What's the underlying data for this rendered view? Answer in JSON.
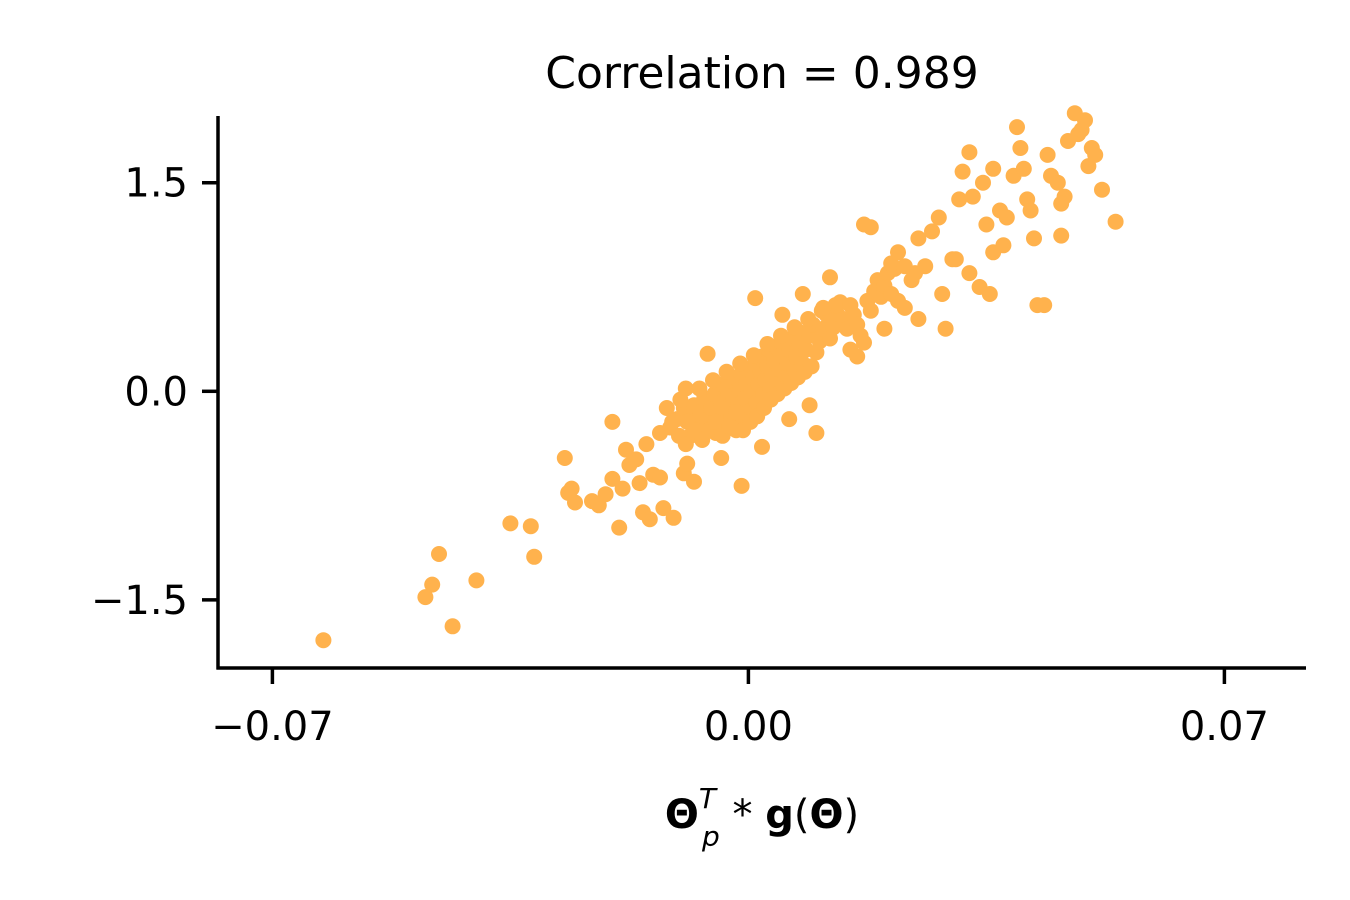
{
  "chart_data": {
    "type": "scatter",
    "title": "Correlation = 0.989",
    "xlabel": {
      "theta_glyph": "Θ",
      "sup": "T",
      "sub": "p",
      "operator": " * ",
      "func": "g",
      "open": "(",
      "close": ")"
    },
    "ylabel": "",
    "xlim": [
      -0.078,
      0.082
    ],
    "ylim": [
      -1.99,
      1.98
    ],
    "xticks": [
      -0.07,
      0.0,
      0.07
    ],
    "xtick_labels": [
      "−0.07",
      "0.00",
      "0.07"
    ],
    "yticks": [
      1.5,
      0.0,
      -1.5
    ],
    "ytick_labels": [
      "1.5",
      "0.0",
      "−1.5"
    ],
    "grid": false,
    "color": "#ffb24d",
    "points": [
      [
        -0.0625,
        -1.79
      ],
      [
        -0.0475,
        -1.48
      ],
      [
        -0.0435,
        -1.69
      ],
      [
        -0.0455,
        -1.17
      ],
      [
        -0.04,
        -1.36
      ],
      [
        -0.0465,
        -1.39
      ],
      [
        -0.035,
        -0.95
      ],
      [
        -0.032,
        -0.97
      ],
      [
        -0.0315,
        -1.19
      ],
      [
        -0.027,
        -0.48
      ],
      [
        -0.0265,
        -0.73
      ],
      [
        -0.026,
        -0.7
      ],
      [
        -0.0255,
        -0.8
      ],
      [
        -0.023,
        -0.79
      ],
      [
        -0.022,
        -0.82
      ],
      [
        -0.021,
        -0.74
      ],
      [
        -0.02,
        -0.63
      ],
      [
        -0.019,
        -0.98
      ],
      [
        -0.0185,
        -0.7
      ],
      [
        -0.0175,
        -0.53
      ],
      [
        -0.0165,
        -0.49
      ],
      [
        -0.016,
        -0.66
      ],
      [
        -0.0155,
        -0.87
      ],
      [
        -0.014,
        -0.6
      ],
      [
        -0.0145,
        -0.92
      ],
      [
        -0.013,
        -0.62
      ],
      [
        -0.0125,
        -0.84
      ],
      [
        -0.011,
        -0.91
      ],
      [
        -0.0095,
        -0.59
      ],
      [
        -0.009,
        -0.52
      ],
      [
        -0.008,
        -0.65
      ],
      [
        -0.006,
        0.27
      ],
      [
        -0.004,
        -0.48
      ],
      [
        -0.001,
        -0.68
      ],
      [
        0.002,
        -0.4
      ],
      [
        0.001,
        0.67
      ],
      [
        -0.02,
        -0.22
      ],
      [
        -0.018,
        -0.42
      ],
      [
        -0.015,
        -0.38
      ],
      [
        -0.013,
        -0.3
      ],
      [
        -0.0115,
        -0.26
      ],
      [
        -0.0105,
        -0.2
      ],
      [
        -0.0095,
        -0.12
      ],
      [
        -0.0085,
        -0.18
      ],
      [
        -0.008,
        -0.1
      ],
      [
        -0.0075,
        -0.25
      ],
      [
        -0.007,
        -0.15
      ],
      [
        -0.0065,
        -0.05
      ],
      [
        -0.006,
        -0.2
      ],
      [
        -0.0055,
        -0.12
      ],
      [
        -0.005,
        -0.02
      ],
      [
        -0.0048,
        -0.3
      ],
      [
        -0.0045,
        -0.15
      ],
      [
        -0.004,
        -0.08
      ],
      [
        -0.0038,
        0.05
      ],
      [
        -0.0035,
        -0.22
      ],
      [
        -0.0032,
        -0.12
      ],
      [
        -0.003,
        -0.02
      ],
      [
        -0.0028,
        0.08
      ],
      [
        -0.0025,
        -0.18
      ],
      [
        -0.0022,
        -0.06
      ],
      [
        -0.002,
        0.1
      ],
      [
        -0.0018,
        -0.28
      ],
      [
        -0.0015,
        -0.1
      ],
      [
        -0.0012,
        0.02
      ],
      [
        -0.001,
        0.12
      ],
      [
        -0.0008,
        -0.2
      ],
      [
        -0.0005,
        -0.05
      ],
      [
        -0.0003,
        0.06
      ],
      [
        0.0,
        0.15
      ],
      [
        0.0002,
        -0.14
      ],
      [
        0.0005,
        0.0
      ],
      [
        0.0008,
        0.1
      ],
      [
        0.001,
        0.2
      ],
      [
        0.0012,
        -0.08
      ],
      [
        0.0015,
        0.05
      ],
      [
        0.0018,
        0.14
      ],
      [
        0.002,
        0.25
      ],
      [
        0.0022,
        -0.02
      ],
      [
        0.0025,
        0.08
      ],
      [
        0.0028,
        0.18
      ],
      [
        0.003,
        0.3
      ],
      [
        0.0032,
        0.02
      ],
      [
        0.0035,
        0.12
      ],
      [
        0.0038,
        0.22
      ],
      [
        0.004,
        0.32
      ],
      [
        0.0042,
        0.05
      ],
      [
        0.0045,
        0.16
      ],
      [
        0.0048,
        0.26
      ],
      [
        0.005,
        0.36
      ],
      [
        0.0055,
        0.1
      ],
      [
        0.0058,
        0.2
      ],
      [
        0.006,
        0.3
      ],
      [
        0.0065,
        0.38
      ],
      [
        0.0068,
        0.15
      ],
      [
        0.007,
        0.25
      ],
      [
        0.0075,
        0.34
      ],
      [
        0.0078,
        0.42
      ],
      [
        0.008,
        0.2
      ],
      [
        0.0085,
        0.3
      ],
      [
        0.009,
        0.4
      ],
      [
        0.0095,
        0.48
      ],
      [
        0.01,
        0.28
      ],
      [
        0.0105,
        0.36
      ],
      [
        0.011,
        0.45
      ],
      [
        0.0115,
        0.55
      ],
      [
        0.012,
        0.38
      ],
      [
        0.0125,
        0.46
      ],
      [
        0.013,
        0.56
      ],
      [
        0.0135,
        0.64
      ],
      [
        -0.009,
        -0.22
      ],
      [
        -0.0085,
        -0.32
      ],
      [
        -0.0078,
        -0.28
      ],
      [
        -0.0068,
        -0.35
      ],
      [
        -0.0058,
        -0.28
      ],
      [
        -0.0048,
        -0.22
      ],
      [
        -0.0038,
        -0.32
      ],
      [
        -0.0028,
        -0.25
      ],
      [
        -0.0018,
        -0.15
      ],
      [
        -0.0008,
        -0.28
      ],
      [
        0.0003,
        -0.22
      ],
      [
        0.0013,
        -0.18
      ],
      [
        0.0023,
        -0.12
      ],
      [
        0.0033,
        -0.06
      ],
      [
        0.0043,
        -0.02
      ],
      [
        0.0053,
        0.02
      ],
      [
        0.0063,
        0.06
      ],
      [
        0.0073,
        0.1
      ],
      [
        0.0083,
        0.14
      ],
      [
        0.0093,
        0.18
      ],
      [
        -0.01,
        -0.06
      ],
      [
        -0.0092,
        0.02
      ],
      [
        -0.0072,
        0.02
      ],
      [
        -0.0052,
        0.08
      ],
      [
        -0.0032,
        0.14
      ],
      [
        -0.0012,
        0.2
      ],
      [
        0.0008,
        0.26
      ],
      [
        0.0028,
        0.34
      ],
      [
        0.0048,
        0.4
      ],
      [
        0.0068,
        0.46
      ],
      [
        0.0088,
        0.52
      ],
      [
        0.0108,
        0.58
      ],
      [
        0.0128,
        0.62
      ],
      [
        -0.012,
        -0.12
      ],
      [
        -0.0112,
        -0.22
      ],
      [
        -0.0102,
        -0.32
      ],
      [
        -0.0092,
        -0.38
      ],
      [
        0.014,
        0.52
      ],
      [
        0.0145,
        0.45
      ],
      [
        0.015,
        0.62
      ],
      [
        0.0155,
        0.55
      ],
      [
        0.016,
        0.48
      ],
      [
        0.0165,
        0.4
      ],
      [
        0.017,
        0.35
      ],
      [
        0.0175,
        0.65
      ],
      [
        0.018,
        0.58
      ],
      [
        0.0185,
        0.72
      ],
      [
        0.019,
        0.8
      ],
      [
        0.0195,
        0.68
      ],
      [
        0.02,
        0.76
      ],
      [
        0.0205,
        0.85
      ],
      [
        0.021,
        0.7
      ],
      [
        0.0215,
        0.88
      ],
      [
        0.022,
        0.65
      ],
      [
        0.023,
        0.6
      ],
      [
        0.024,
        0.8
      ],
      [
        0.025,
        0.52
      ],
      [
        0.026,
        0.9
      ],
      [
        0.027,
        1.15
      ],
      [
        0.018,
        1.18
      ],
      [
        0.017,
        1.2
      ],
      [
        0.012,
        0.82
      ],
      [
        0.011,
        0.6
      ],
      [
        0.015,
        0.3
      ],
      [
        0.016,
        0.25
      ],
      [
        0.009,
        -0.1
      ],
      [
        0.01,
        -0.3
      ],
      [
        0.006,
        -0.2
      ],
      [
        0.008,
        0.7
      ],
      [
        0.005,
        0.55
      ],
      [
        0.0285,
        0.7
      ],
      [
        0.029,
        0.45
      ],
      [
        0.03,
        0.95
      ],
      [
        0.0305,
        0.95
      ],
      [
        0.031,
        1.38
      ],
      [
        0.0315,
        1.58
      ],
      [
        0.0325,
        0.85
      ],
      [
        0.033,
        1.4
      ],
      [
        0.034,
        0.75
      ],
      [
        0.0345,
        1.5
      ],
      [
        0.0355,
        0.7
      ],
      [
        0.036,
        1.0
      ],
      [
        0.037,
        1.3
      ],
      [
        0.0375,
        1.05
      ],
      [
        0.038,
        1.25
      ],
      [
        0.039,
        1.55
      ],
      [
        0.0395,
        1.9
      ],
      [
        0.04,
        1.75
      ],
      [
        0.0405,
        1.6
      ],
      [
        0.041,
        1.38
      ],
      [
        0.0415,
        1.3
      ],
      [
        0.042,
        1.1
      ],
      [
        0.0425,
        0.62
      ],
      [
        0.0435,
        0.62
      ],
      [
        0.044,
        1.7
      ],
      [
        0.0445,
        1.55
      ],
      [
        0.0455,
        1.5
      ],
      [
        0.046,
        1.12
      ],
      [
        0.0465,
        1.4
      ],
      [
        0.047,
        1.8
      ],
      [
        0.048,
        2.0
      ],
      [
        0.0485,
        1.85
      ],
      [
        0.049,
        1.88
      ],
      [
        0.0495,
        1.95
      ],
      [
        0.05,
        1.62
      ],
      [
        0.0505,
        1.75
      ],
      [
        0.051,
        1.7
      ],
      [
        0.052,
        1.45
      ],
      [
        0.054,
        1.22
      ],
      [
        0.0325,
        1.72
      ],
      [
        0.035,
        1.2
      ],
      [
        0.036,
        1.6
      ],
      [
        0.046,
        1.35
      ],
      [
        0.028,
        1.25
      ],
      [
        0.025,
        1.1
      ],
      [
        0.022,
        1.0
      ],
      [
        0.021,
        0.92
      ],
      [
        0.02,
        0.45
      ],
      [
        0.023,
        0.9
      ],
      [
        0.0245,
        0.85
      ]
    ]
  }
}
